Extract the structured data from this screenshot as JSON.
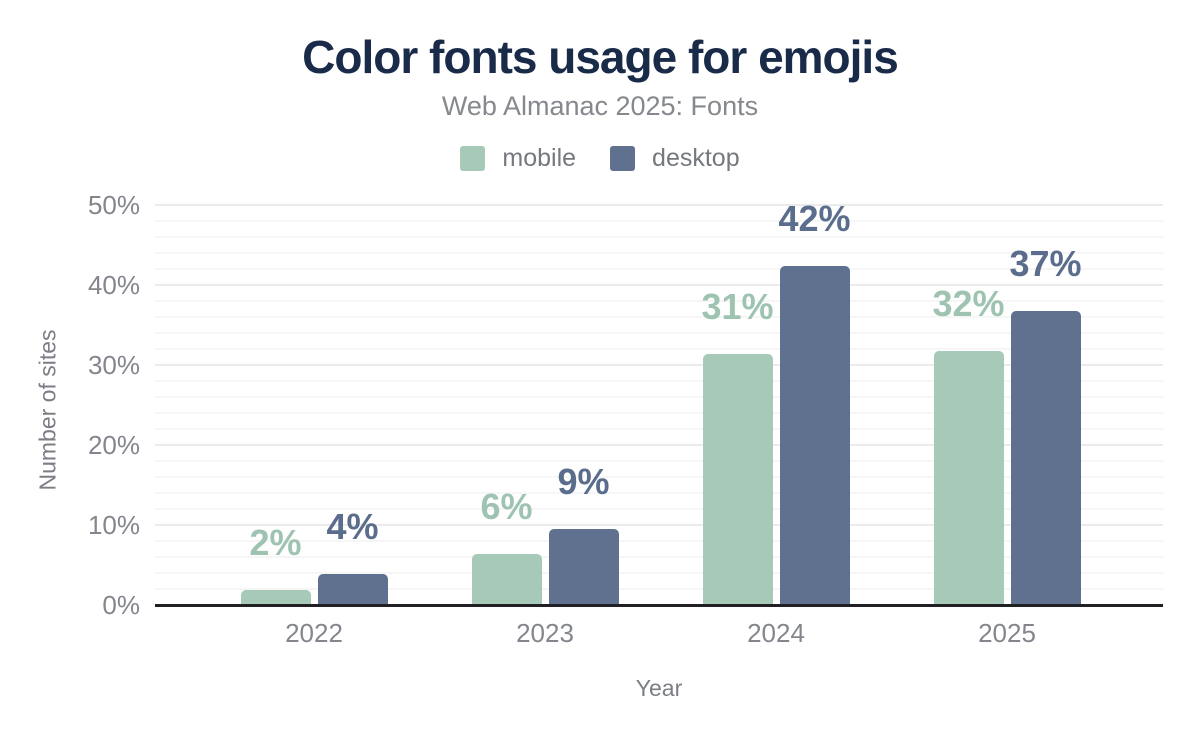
{
  "chart_data": {
    "type": "bar",
    "title": "Color fonts usage for emojis",
    "subtitle": "Web Almanac 2025: Fonts",
    "xlabel": "Year",
    "ylabel": "Number of sites",
    "categories": [
      "2022",
      "2023",
      "2024",
      "2025"
    ],
    "series": [
      {
        "name": "mobile",
        "color": "#a7cab8",
        "label_color": "#9ec4b1",
        "values": [
          1.7,
          6.2,
          31.3,
          31.6
        ],
        "labels": [
          "2%",
          "6%",
          "31%",
          "32%"
        ]
      },
      {
        "name": "desktop",
        "color": "#5f718f",
        "label_color": "#5b6d8c",
        "values": [
          3.7,
          9.4,
          42.3,
          36.6
        ],
        "labels": [
          "4%",
          "9%",
          "42%",
          "37%"
        ]
      }
    ],
    "yticks": [
      "0%",
      "10%",
      "20%",
      "30%",
      "40%",
      "50%"
    ],
    "ylim": [
      0,
      50
    ],
    "grid": {
      "minor_step_pct": 2,
      "major_step_pct": 10,
      "visible": true
    },
    "legend_position": "top"
  }
}
